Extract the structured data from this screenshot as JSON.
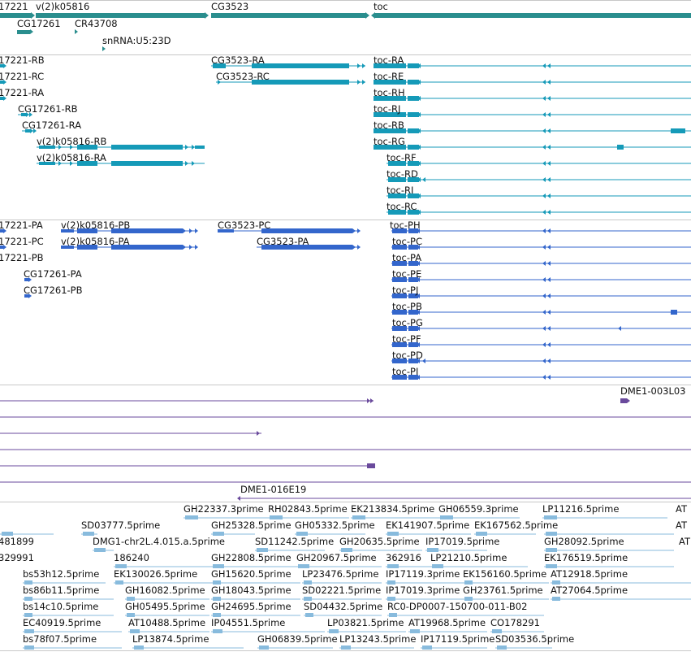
{
  "colors": {
    "gene": "#2a8e8e",
    "transcript": "#159ab8",
    "cds": "#3366cc",
    "clone": "#6a4a9c",
    "est": "#88bbdd",
    "separator": "#c8c8c8"
  },
  "genes": {
    "labels": [
      {
        "id": "g1",
        "text": "17221"
      },
      {
        "id": "g2",
        "text": "v(2)k05816"
      },
      {
        "id": "g3",
        "text": "CG3523"
      },
      {
        "id": "g4",
        "text": "toc"
      },
      {
        "id": "g5",
        "text": "CG17261"
      },
      {
        "id": "g6",
        "text": "CR43708"
      },
      {
        "id": "g7",
        "text": "snRNA:U5:23D"
      }
    ]
  },
  "transcripts": {
    "labels": [
      {
        "id": "t1",
        "text": "17221-RB"
      },
      {
        "id": "t2",
        "text": "17221-RC"
      },
      {
        "id": "t3",
        "text": "17221-RA"
      },
      {
        "id": "t4",
        "text": "CG17261-RB"
      },
      {
        "id": "t5",
        "text": "CG17261-RA"
      },
      {
        "id": "t6",
        "text": "v(2)k05816-RB"
      },
      {
        "id": "t7",
        "text": "v(2)k05816-RA"
      },
      {
        "id": "t8",
        "text": "CG3523-RA"
      },
      {
        "id": "t9",
        "text": "CG3523-RC"
      },
      {
        "id": "t10",
        "text": "toc-RA"
      },
      {
        "id": "t11",
        "text": "toc-RE"
      },
      {
        "id": "t12",
        "text": "toc-RH"
      },
      {
        "id": "t13",
        "text": "toc-RJ"
      },
      {
        "id": "t14",
        "text": "toc-RB"
      },
      {
        "id": "t15",
        "text": "toc-RG"
      },
      {
        "id": "t16",
        "text": "toc-RF"
      },
      {
        "id": "t17",
        "text": "toc-RD"
      },
      {
        "id": "t18",
        "text": "toc-RI"
      },
      {
        "id": "t19",
        "text": "toc-RC"
      }
    ]
  },
  "cds": {
    "labels": [
      {
        "id": "c1",
        "text": "17221-PA"
      },
      {
        "id": "c2",
        "text": "17221-PC"
      },
      {
        "id": "c3",
        "text": "17221-PB"
      },
      {
        "id": "c4",
        "text": "v(2)k05816-PB"
      },
      {
        "id": "c5",
        "text": "v(2)k05816-PA"
      },
      {
        "id": "c6",
        "text": "CG17261-PA"
      },
      {
        "id": "c7",
        "text": "CG17261-PB"
      },
      {
        "id": "c8",
        "text": "CG3523-PC"
      },
      {
        "id": "c9",
        "text": "CG3523-PA"
      },
      {
        "id": "c10",
        "text": "toc-PH"
      },
      {
        "id": "c11",
        "text": "toc-PC"
      },
      {
        "id": "c12",
        "text": "toc-PA"
      },
      {
        "id": "c13",
        "text": "toc-PE"
      },
      {
        "id": "c14",
        "text": "toc-PJ"
      },
      {
        "id": "c15",
        "text": "toc-PB"
      },
      {
        "id": "c16",
        "text": "toc-PG"
      },
      {
        "id": "c17",
        "text": "toc-PF"
      },
      {
        "id": "c18",
        "text": "toc-PD"
      },
      {
        "id": "c19",
        "text": "toc-PI"
      }
    ]
  },
  "clones": {
    "labels": [
      {
        "id": "k1",
        "text": "DME1-003L03"
      },
      {
        "id": "k2",
        "text": "DME1-016E19"
      }
    ]
  },
  "ests": {
    "labels": [
      {
        "id": "e1",
        "text": "GH22337.3prime"
      },
      {
        "id": "e2",
        "text": "RH02843.5prime"
      },
      {
        "id": "e3",
        "text": "EK213834.5prime"
      },
      {
        "id": "e4",
        "text": "GH06559.3prime"
      },
      {
        "id": "e5",
        "text": "LP11216.5prime"
      },
      {
        "id": "e6",
        "text": "AT"
      },
      {
        "id": "e7",
        "text": "SD03777.5prime"
      },
      {
        "id": "e8",
        "text": "GH25328.5prime"
      },
      {
        "id": "e9",
        "text": "GH05332.5prime"
      },
      {
        "id": "e10",
        "text": "EK141907.5prime"
      },
      {
        "id": "e11",
        "text": "EK167562.5prime"
      },
      {
        "id": "e12",
        "text": "AT"
      },
      {
        "id": "e13",
        "text": "481899"
      },
      {
        "id": "e14",
        "text": "DMG1-chr2L.4.015.a.5prime"
      },
      {
        "id": "e15",
        "text": "SD11242.5prime"
      },
      {
        "id": "e16",
        "text": "GH20635.5prime"
      },
      {
        "id": "e17",
        "text": "IP17019.5prime"
      },
      {
        "id": "e18",
        "text": "GH28092.5prime"
      },
      {
        "id": "e19",
        "text": "AT"
      },
      {
        "id": "e20",
        "text": "329991"
      },
      {
        "id": "e21",
        "text": "186240"
      },
      {
        "id": "e22",
        "text": "GH22808.5prime"
      },
      {
        "id": "e23",
        "text": "GH20967.5prime"
      },
      {
        "id": "e24",
        "text": "362916"
      },
      {
        "id": "e25",
        "text": "LP21210.5prime"
      },
      {
        "id": "e26",
        "text": "EK176519.5prime"
      },
      {
        "id": "e27",
        "text": "bs53h12.5prime"
      },
      {
        "id": "e28",
        "text": "EK130026.5prime"
      },
      {
        "id": "e29",
        "text": "GH15620.5prime"
      },
      {
        "id": "e30",
        "text": "LP23476.5prime"
      },
      {
        "id": "e31",
        "text": "IP17119.3prime"
      },
      {
        "id": "e32",
        "text": "EK156160.5prime"
      },
      {
        "id": "e33",
        "text": "AT12918.5prime"
      },
      {
        "id": "e34",
        "text": "bs86b11.5prime"
      },
      {
        "id": "e35",
        "text": "GH16082.5prime"
      },
      {
        "id": "e36",
        "text": "GH18043.5prime"
      },
      {
        "id": "e37",
        "text": "SD02221.5prime"
      },
      {
        "id": "e38",
        "text": "IP17019.3prime"
      },
      {
        "id": "e39",
        "text": "GH23761.5prime"
      },
      {
        "id": "e40",
        "text": "AT27064.5prime"
      },
      {
        "id": "e41",
        "text": "bs14c10.5prime"
      },
      {
        "id": "e42",
        "text": "GH05495.5prime"
      },
      {
        "id": "e43",
        "text": "GH24695.5prime"
      },
      {
        "id": "e44",
        "text": "SD04432.5prime"
      },
      {
        "id": "e45",
        "text": "RC0-DP0007-150700-011-B02"
      },
      {
        "id": "e46",
        "text": "EC40919.5prime"
      },
      {
        "id": "e47",
        "text": "AT10488.5prime"
      },
      {
        "id": "e48",
        "text": "IP04551.5prime"
      },
      {
        "id": "e49",
        "text": "LP03821.5prime"
      },
      {
        "id": "e50",
        "text": "AT19968.5prime"
      },
      {
        "id": "e51",
        "text": "CO178291"
      },
      {
        "id": "e52",
        "text": "bs78f07.5prime"
      },
      {
        "id": "e53",
        "text": "LP13874.5prime"
      },
      {
        "id": "e54",
        "text": "GH06839.5prime"
      },
      {
        "id": "e55",
        "text": "LP13243.5prime"
      },
      {
        "id": "e56",
        "text": "IP17119.5prime"
      },
      {
        "id": "e57",
        "text": "SD03536.5prime"
      }
    ]
  }
}
